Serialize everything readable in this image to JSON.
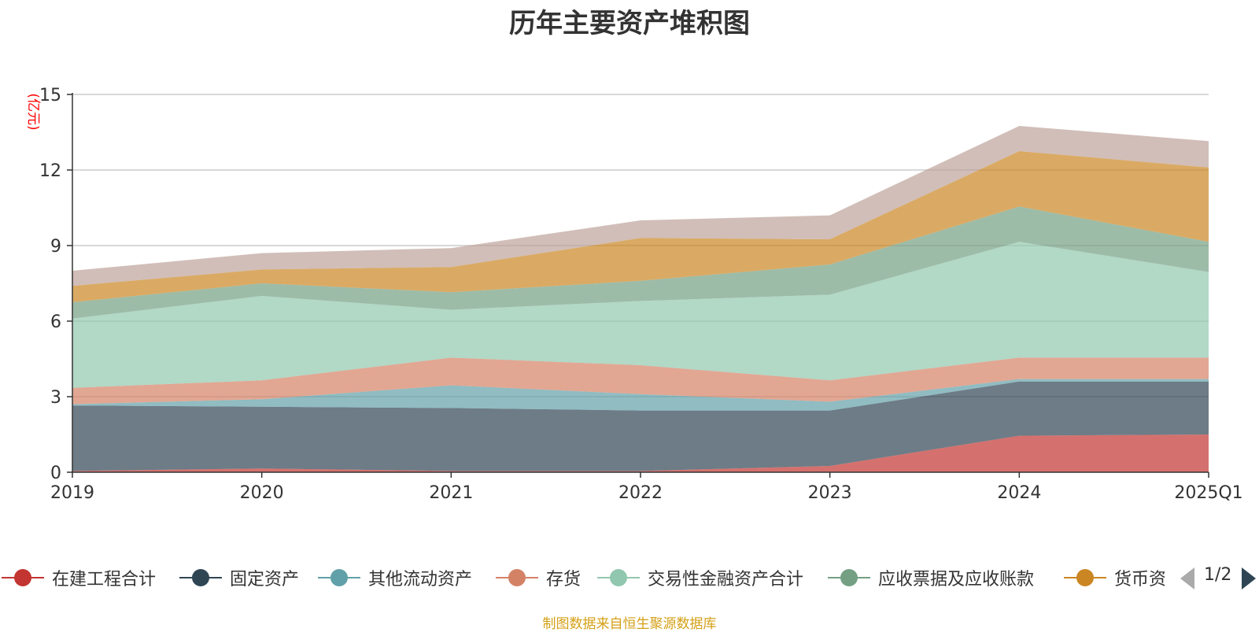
{
  "chart_data": {
    "type": "area",
    "stacked": true,
    "title": "历年主要资产堆积图",
    "unit_label": "(亿元)",
    "categories": [
      "2019",
      "2020",
      "2021",
      "2022",
      "2023",
      "2024",
      "2025Q1"
    ],
    "ylim": [
      0,
      15
    ],
    "yticks": [
      0,
      3,
      6,
      9,
      12,
      15
    ],
    "grid": true,
    "legend_position": "bottom",
    "series": [
      {
        "name": "在建工程合计",
        "color": "#c23531",
        "values": [
          0.05,
          0.15,
          0.05,
          0.05,
          0.25,
          1.45,
          1.5
        ]
      },
      {
        "name": "固定资产",
        "color": "#2f4554",
        "values": [
          2.6,
          2.45,
          2.5,
          2.4,
          2.2,
          2.15,
          2.1
        ]
      },
      {
        "name": "其他流动资产",
        "color": "#61a0a8",
        "values": [
          0.05,
          0.3,
          0.9,
          0.65,
          0.35,
          0.1,
          0.1
        ]
      },
      {
        "name": "存货",
        "color": "#d48265",
        "values": [
          0.65,
          0.75,
          1.1,
          1.15,
          0.85,
          0.85,
          0.85
        ]
      },
      {
        "name": "交易性金融资产合计",
        "color": "#91c7ae",
        "values": [
          2.75,
          3.35,
          1.9,
          2.55,
          3.4,
          4.6,
          3.4
        ]
      },
      {
        "name": "应收票据及应收账款",
        "color": "#749f83",
        "values": [
          0.65,
          0.5,
          0.7,
          0.8,
          1.2,
          1.4,
          1.2
        ]
      },
      {
        "name": "货币资金",
        "color": "#ca8622",
        "values": [
          0.65,
          0.55,
          1.0,
          1.7,
          1.0,
          2.2,
          2.95
        ]
      },
      {
        "name": "",
        "color": "#bda29a",
        "values": [
          0.6,
          0.65,
          0.75,
          0.7,
          0.95,
          1.0,
          1.05
        ]
      }
    ]
  },
  "legend": {
    "pager_text": "1/2"
  },
  "source_note": "制图数据来自恒生聚源数据库"
}
